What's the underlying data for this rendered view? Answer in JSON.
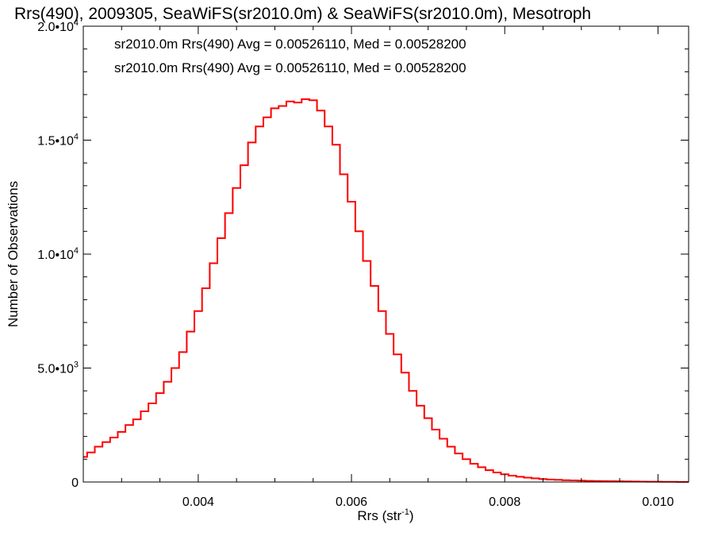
{
  "chart_data": {
    "type": "line",
    "title": "Rrs(490), 2009305, SeaWiFS(sr2010.0m) & SeaWiFS(sr2010.0m), Mesotroph",
    "xlabel": "Rrs (str",
    "xlabel_sup": "-1",
    "xlabel_close": ")",
    "ylabel": "Number of Observations",
    "xlim": [
      0.0025,
      0.0104
    ],
    "ylim": [
      0,
      20000
    ],
    "x_ticks": [
      {
        "value": 0.004,
        "label": "0.004"
      },
      {
        "value": 0.006,
        "label": "0.006"
      },
      {
        "value": 0.008,
        "label": "0.008"
      },
      {
        "value": 0.01,
        "label": "0.010"
      }
    ],
    "y_ticks": [
      {
        "value": 0,
        "label": "0",
        "sup": ""
      },
      {
        "value": 5000,
        "label": "5.0•10",
        "sup": "3"
      },
      {
        "value": 10000,
        "label": "1.0•10",
        "sup": "4"
      },
      {
        "value": 15000,
        "label": "1.5•10",
        "sup": "4"
      },
      {
        "value": 20000,
        "label": "2.0•10",
        "sup": "4"
      }
    ],
    "annotations": [
      {
        "text": "sr2010.0m Rrs(490) Avg = 0.00526110, Med = 0.00528200",
        "color": "#000000"
      },
      {
        "text": "sr2010.0m Rrs(490) Avg = 0.00526110, Med = 0.00528200",
        "color": "#ff0000"
      }
    ],
    "grid": false,
    "series": [
      {
        "color": "#000000",
        "style": "step",
        "x": [
          0.0025,
          0.0026,
          0.0027,
          0.0028,
          0.0029,
          0.003,
          0.0031,
          0.0032,
          0.0033,
          0.0034,
          0.0035,
          0.0036,
          0.0037,
          0.0038,
          0.0039,
          0.004,
          0.0041,
          0.0042,
          0.0043,
          0.0044,
          0.0045,
          0.0046,
          0.0047,
          0.0048,
          0.0049,
          0.005,
          0.0051,
          0.0052,
          0.0053,
          0.0054,
          0.0055,
          0.0056,
          0.0057,
          0.0058,
          0.0059,
          0.006,
          0.0061,
          0.0062,
          0.0063,
          0.0064,
          0.0065,
          0.0066,
          0.0067,
          0.0068,
          0.0069,
          0.007,
          0.0071,
          0.0072,
          0.0073,
          0.0074,
          0.0075,
          0.0076,
          0.0077,
          0.0078,
          0.0079,
          0.008,
          0.0081,
          0.0082,
          0.0083,
          0.0084,
          0.0085,
          0.0086,
          0.0087,
          0.0088,
          0.0089,
          0.009,
          0.0091,
          0.0092,
          0.0093,
          0.0094,
          0.0095,
          0.0096,
          0.0097,
          0.0098,
          0.0099,
          0.01,
          0.0101,
          0.0102,
          0.0103,
          0.0104
        ],
        "values": [
          1100,
          1300,
          1550,
          1750,
          1950,
          2200,
          2500,
          2750,
          3100,
          3450,
          3900,
          4400,
          5000,
          5700,
          6600,
          7500,
          8500,
          9600,
          10700,
          11800,
          12900,
          13900,
          14900,
          15600,
          16000,
          16400,
          16500,
          16700,
          16650,
          16800,
          16750,
          16300,
          15600,
          14800,
          13500,
          12300,
          11000,
          9700,
          8600,
          7500,
          6500,
          5600,
          4800,
          4000,
          3350,
          2800,
          2300,
          1900,
          1550,
          1250,
          1000,
          800,
          650,
          520,
          420,
          340,
          280,
          230,
          190,
          160,
          130,
          110,
          95,
          80,
          70,
          60,
          50,
          45,
          40,
          35,
          30,
          25,
          20,
          18,
          15,
          12,
          10,
          8,
          6,
          5
        ]
      },
      {
        "color": "#ff0000",
        "style": "step",
        "x": [
          0.0025,
          0.0026,
          0.0027,
          0.0028,
          0.0029,
          0.003,
          0.0031,
          0.0032,
          0.0033,
          0.0034,
          0.0035,
          0.0036,
          0.0037,
          0.0038,
          0.0039,
          0.004,
          0.0041,
          0.0042,
          0.0043,
          0.0044,
          0.0045,
          0.0046,
          0.0047,
          0.0048,
          0.0049,
          0.005,
          0.0051,
          0.0052,
          0.0053,
          0.0054,
          0.0055,
          0.0056,
          0.0057,
          0.0058,
          0.0059,
          0.006,
          0.0061,
          0.0062,
          0.0063,
          0.0064,
          0.0065,
          0.0066,
          0.0067,
          0.0068,
          0.0069,
          0.007,
          0.0071,
          0.0072,
          0.0073,
          0.0074,
          0.0075,
          0.0076,
          0.0077,
          0.0078,
          0.0079,
          0.008,
          0.0081,
          0.0082,
          0.0083,
          0.0084,
          0.0085,
          0.0086,
          0.0087,
          0.0088,
          0.0089,
          0.009,
          0.0091,
          0.0092,
          0.0093,
          0.0094,
          0.0095,
          0.0096,
          0.0097,
          0.0098,
          0.0099,
          0.01,
          0.0101,
          0.0102,
          0.0103,
          0.0104
        ],
        "values": [
          1100,
          1300,
          1550,
          1750,
          1950,
          2200,
          2500,
          2750,
          3100,
          3450,
          3900,
          4400,
          5000,
          5700,
          6600,
          7500,
          8500,
          9600,
          10700,
          11800,
          12900,
          13900,
          14900,
          15600,
          16000,
          16400,
          16500,
          16700,
          16650,
          16800,
          16750,
          16300,
          15600,
          14800,
          13500,
          12300,
          11000,
          9700,
          8600,
          7500,
          6500,
          5600,
          4800,
          4000,
          3350,
          2800,
          2300,
          1900,
          1550,
          1250,
          1000,
          800,
          650,
          520,
          420,
          340,
          280,
          230,
          190,
          160,
          130,
          110,
          95,
          80,
          70,
          60,
          50,
          45,
          40,
          35,
          30,
          25,
          20,
          18,
          15,
          12,
          10,
          8,
          6,
          5
        ]
      }
    ]
  }
}
